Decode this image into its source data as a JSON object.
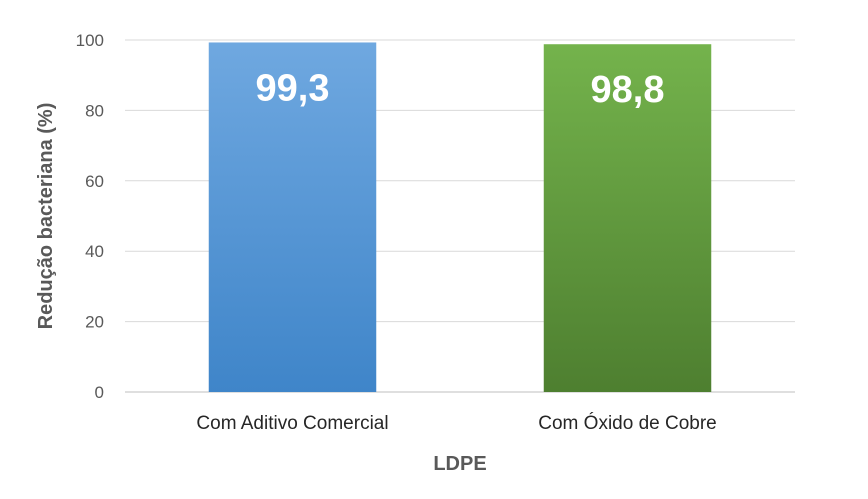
{
  "chart_data": {
    "type": "bar",
    "categories": [
      "Com Aditivo Comercial",
      "Com Óxido de Cobre"
    ],
    "values": [
      99.3,
      98.8
    ],
    "data_labels": [
      "99,3",
      "98,8"
    ],
    "title": "",
    "xlabel": "LDPE",
    "ylabel": "Redução bacteriana (%)",
    "ylim": [
      0,
      100
    ],
    "yticks": [
      "0",
      "20",
      "40",
      "60",
      "80",
      "100"
    ],
    "grid": true,
    "legend": "none",
    "colors": [
      "#5B9BD5",
      "#70AD47"
    ]
  }
}
